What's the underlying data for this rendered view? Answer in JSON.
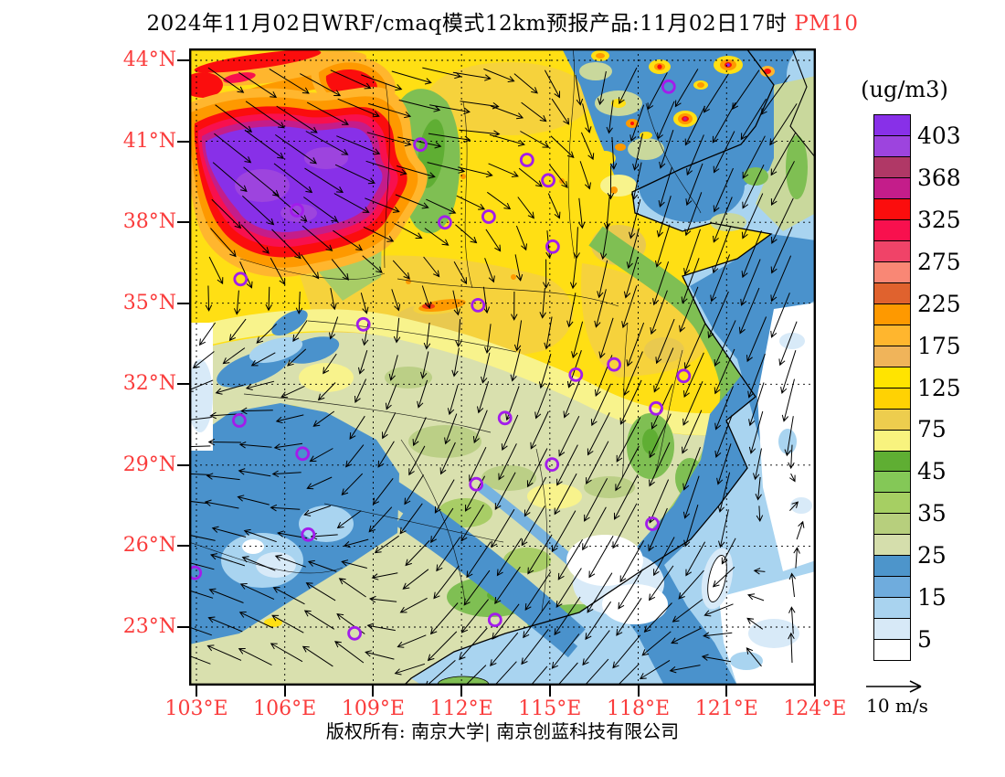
{
  "title": {
    "prefix": "2024年11月02日WRF/cmaq模式12km预报产品:11月02日17时",
    "pollutant": " PM10"
  },
  "colorbar": {
    "unit_label": "(ug/m3)",
    "tick_labels": [
      "403",
      "368",
      "325",
      "275",
      "225",
      "175",
      "125",
      "75",
      "45",
      "35",
      "25",
      "15",
      "5"
    ],
    "segment_colors": [
      "#8830e8",
      "#9d44de",
      "#b03866",
      "#c41d8a",
      "#fb0d0d",
      "#f8104e",
      "#f04368",
      "#f98775",
      "#e0622e",
      "#fe9900",
      "#ffb62e",
      "#f0b45a",
      "#ffe400",
      "#ffd203",
      "#edcd4e",
      "#f8f37e",
      "#5fae33",
      "#84c857",
      "#a6cf63",
      "#b7cf7d",
      "#d5deac",
      "#4d95cb",
      "#6facdd",
      "#a9d3ef",
      "#d7e9f7",
      "#ffffff"
    ]
  },
  "axes": {
    "lat_tick_labels": [
      "44°N",
      "41°N",
      "38°N",
      "35°N",
      "32°N",
      "29°N",
      "26°N",
      "23°N"
    ],
    "lon_tick_labels": [
      "103°E",
      "106°E",
      "109°E",
      "112°E",
      "115°E",
      "118°E",
      "121°E",
      "124°E"
    ],
    "tick_label_color": "#fa3c3c"
  },
  "wind_legend": {
    "label": "10 m/s"
  },
  "footer_text": "版权所有: 南京大学| 南京创蓝科技有限公司",
  "chart_data": {
    "type": "heatmap",
    "title": "2024年11月02日WRF/cmaq模式12km预报产品:11月02日17时 PM10",
    "variable": "PM10",
    "unit": "ug/m3",
    "lon_ticks": [
      103,
      106,
      109,
      112,
      115,
      118,
      121,
      124
    ],
    "lat_ticks": [
      23,
      26,
      29,
      32,
      35,
      38,
      41,
      44
    ],
    "contour_levels": [
      5,
      15,
      25,
      35,
      45,
      75,
      125,
      175,
      225,
      275,
      325,
      368,
      403
    ],
    "palette_low_to_high": [
      "#ffffff",
      "#d7e9f7",
      "#a9d3ef",
      "#6facdd",
      "#4d95cb",
      "#d5deac",
      "#b7cf7d",
      "#a6cf63",
      "#84c857",
      "#5fae33",
      "#f8f37e",
      "#edcd4e",
      "#ffd203",
      "#ffe400",
      "#f0b45a",
      "#ffb62e",
      "#fe9900",
      "#e0622e",
      "#f98775",
      "#f04368",
      "#f8104e",
      "#fb0d0d",
      "#c41d8a",
      "#b03866",
      "#9d44de",
      "#8830e8"
    ],
    "regions_summary": [
      {
        "area": "northwest (approx 103-108E, 38-42N)",
        "value": ">403 purple core ringed by 325-403 red and 175-275 orange"
      },
      {
        "area": "upper-left corner streaks",
        "value": "225-403 red/orange bands in yellow"
      },
      {
        "area": "north-central plain (105-118E, 33-40N)",
        "value": "75-175 yellow/gold"
      },
      {
        "area": "Shanxi-Shaanxi uplands",
        "value": "35-75 green"
      },
      {
        "area": "northeast and Bohai (116-124E, 38-44N)",
        "value": "5-25 blue with local 125-403 hotspots"
      },
      {
        "area": "central-south land",
        "value": "15-35 sage green with 5-15 blue bands"
      },
      {
        "area": "southwest (103-109E, 21-29N)",
        "value": "5-15 blue"
      },
      {
        "area": "east/southeast seas",
        "value": "5-15 blue grading to <5 white offshore"
      }
    ],
    "wind_vectors": {
      "reference": "10 m/s",
      "grid_rows": 8,
      "grid_cols": 8,
      "angle_len_grid": [
        [
          [
            35,
            45
          ],
          [
            30,
            50
          ],
          [
            20,
            45
          ],
          [
            10,
            40
          ],
          [
            70,
            35
          ],
          [
            120,
            45
          ],
          [
            125,
            50
          ],
          [
            130,
            55
          ]
        ],
        [
          [
            40,
            50
          ],
          [
            35,
            55
          ],
          [
            15,
            50
          ],
          [
            5,
            45
          ],
          [
            40,
            35
          ],
          [
            100,
            40
          ],
          [
            115,
            50
          ],
          [
            120,
            55
          ]
        ],
        [
          [
            50,
            40
          ],
          [
            45,
            45
          ],
          [
            25,
            35
          ],
          [
            45,
            30
          ],
          [
            85,
            30
          ],
          [
            105,
            45
          ],
          [
            110,
            55
          ],
          [
            115,
            55
          ]
        ],
        [
          [
            120,
            30
          ],
          [
            135,
            30
          ],
          [
            100,
            26
          ],
          [
            95,
            30
          ],
          [
            100,
            35
          ],
          [
            110,
            50
          ],
          [
            115,
            55
          ],
          [
            110,
            50
          ]
        ],
        [
          [
            170,
            35
          ],
          [
            180,
            35
          ],
          [
            120,
            30
          ],
          [
            110,
            35
          ],
          [
            115,
            45
          ],
          [
            118,
            55
          ],
          [
            112,
            50
          ],
          [
            95,
            45
          ]
        ],
        [
          [
            185,
            40
          ],
          [
            195,
            35
          ],
          [
            135,
            35
          ],
          [
            122,
            45
          ],
          [
            120,
            50
          ],
          [
            118,
            55
          ],
          [
            100,
            45
          ],
          [
            -60,
            35
          ]
        ],
        [
          [
            195,
            40
          ],
          [
            205,
            40
          ],
          [
            215,
            35
          ],
          [
            130,
            45
          ],
          [
            125,
            50
          ],
          [
            122,
            50
          ],
          [
            150,
            40
          ],
          [
            -80,
            40
          ]
        ],
        [
          [
            200,
            40
          ],
          [
            208,
            40
          ],
          [
            218,
            40
          ],
          [
            140,
            45
          ],
          [
            132,
            45
          ],
          [
            138,
            45
          ],
          [
            200,
            35
          ],
          [
            -75,
            45
          ]
        ]
      ]
    },
    "station_markers_frac": [
      [
        0.172,
        0.254
      ],
      [
        0.369,
        0.151
      ],
      [
        0.408,
        0.273
      ],
      [
        0.478,
        0.264
      ],
      [
        0.765,
        0.06
      ],
      [
        0.539,
        0.175
      ],
      [
        0.573,
        0.207
      ],
      [
        0.58,
        0.311
      ],
      [
        0.082,
        0.362
      ],
      [
        0.278,
        0.433
      ],
      [
        0.461,
        0.403
      ],
      [
        0.08,
        0.584
      ],
      [
        0.181,
        0.636
      ],
      [
        0.458,
        0.684
      ],
      [
        0.678,
        0.496
      ],
      [
        0.617,
        0.512
      ],
      [
        0.789,
        0.514
      ],
      [
        0.745,
        0.565
      ],
      [
        0.579,
        0.653
      ],
      [
        0.009,
        0.823
      ],
      [
        0.19,
        0.763
      ],
      [
        0.264,
        0.918
      ],
      [
        0.488,
        0.897
      ],
      [
        0.739,
        0.746
      ],
      [
        0.504,
        0.58
      ]
    ]
  }
}
